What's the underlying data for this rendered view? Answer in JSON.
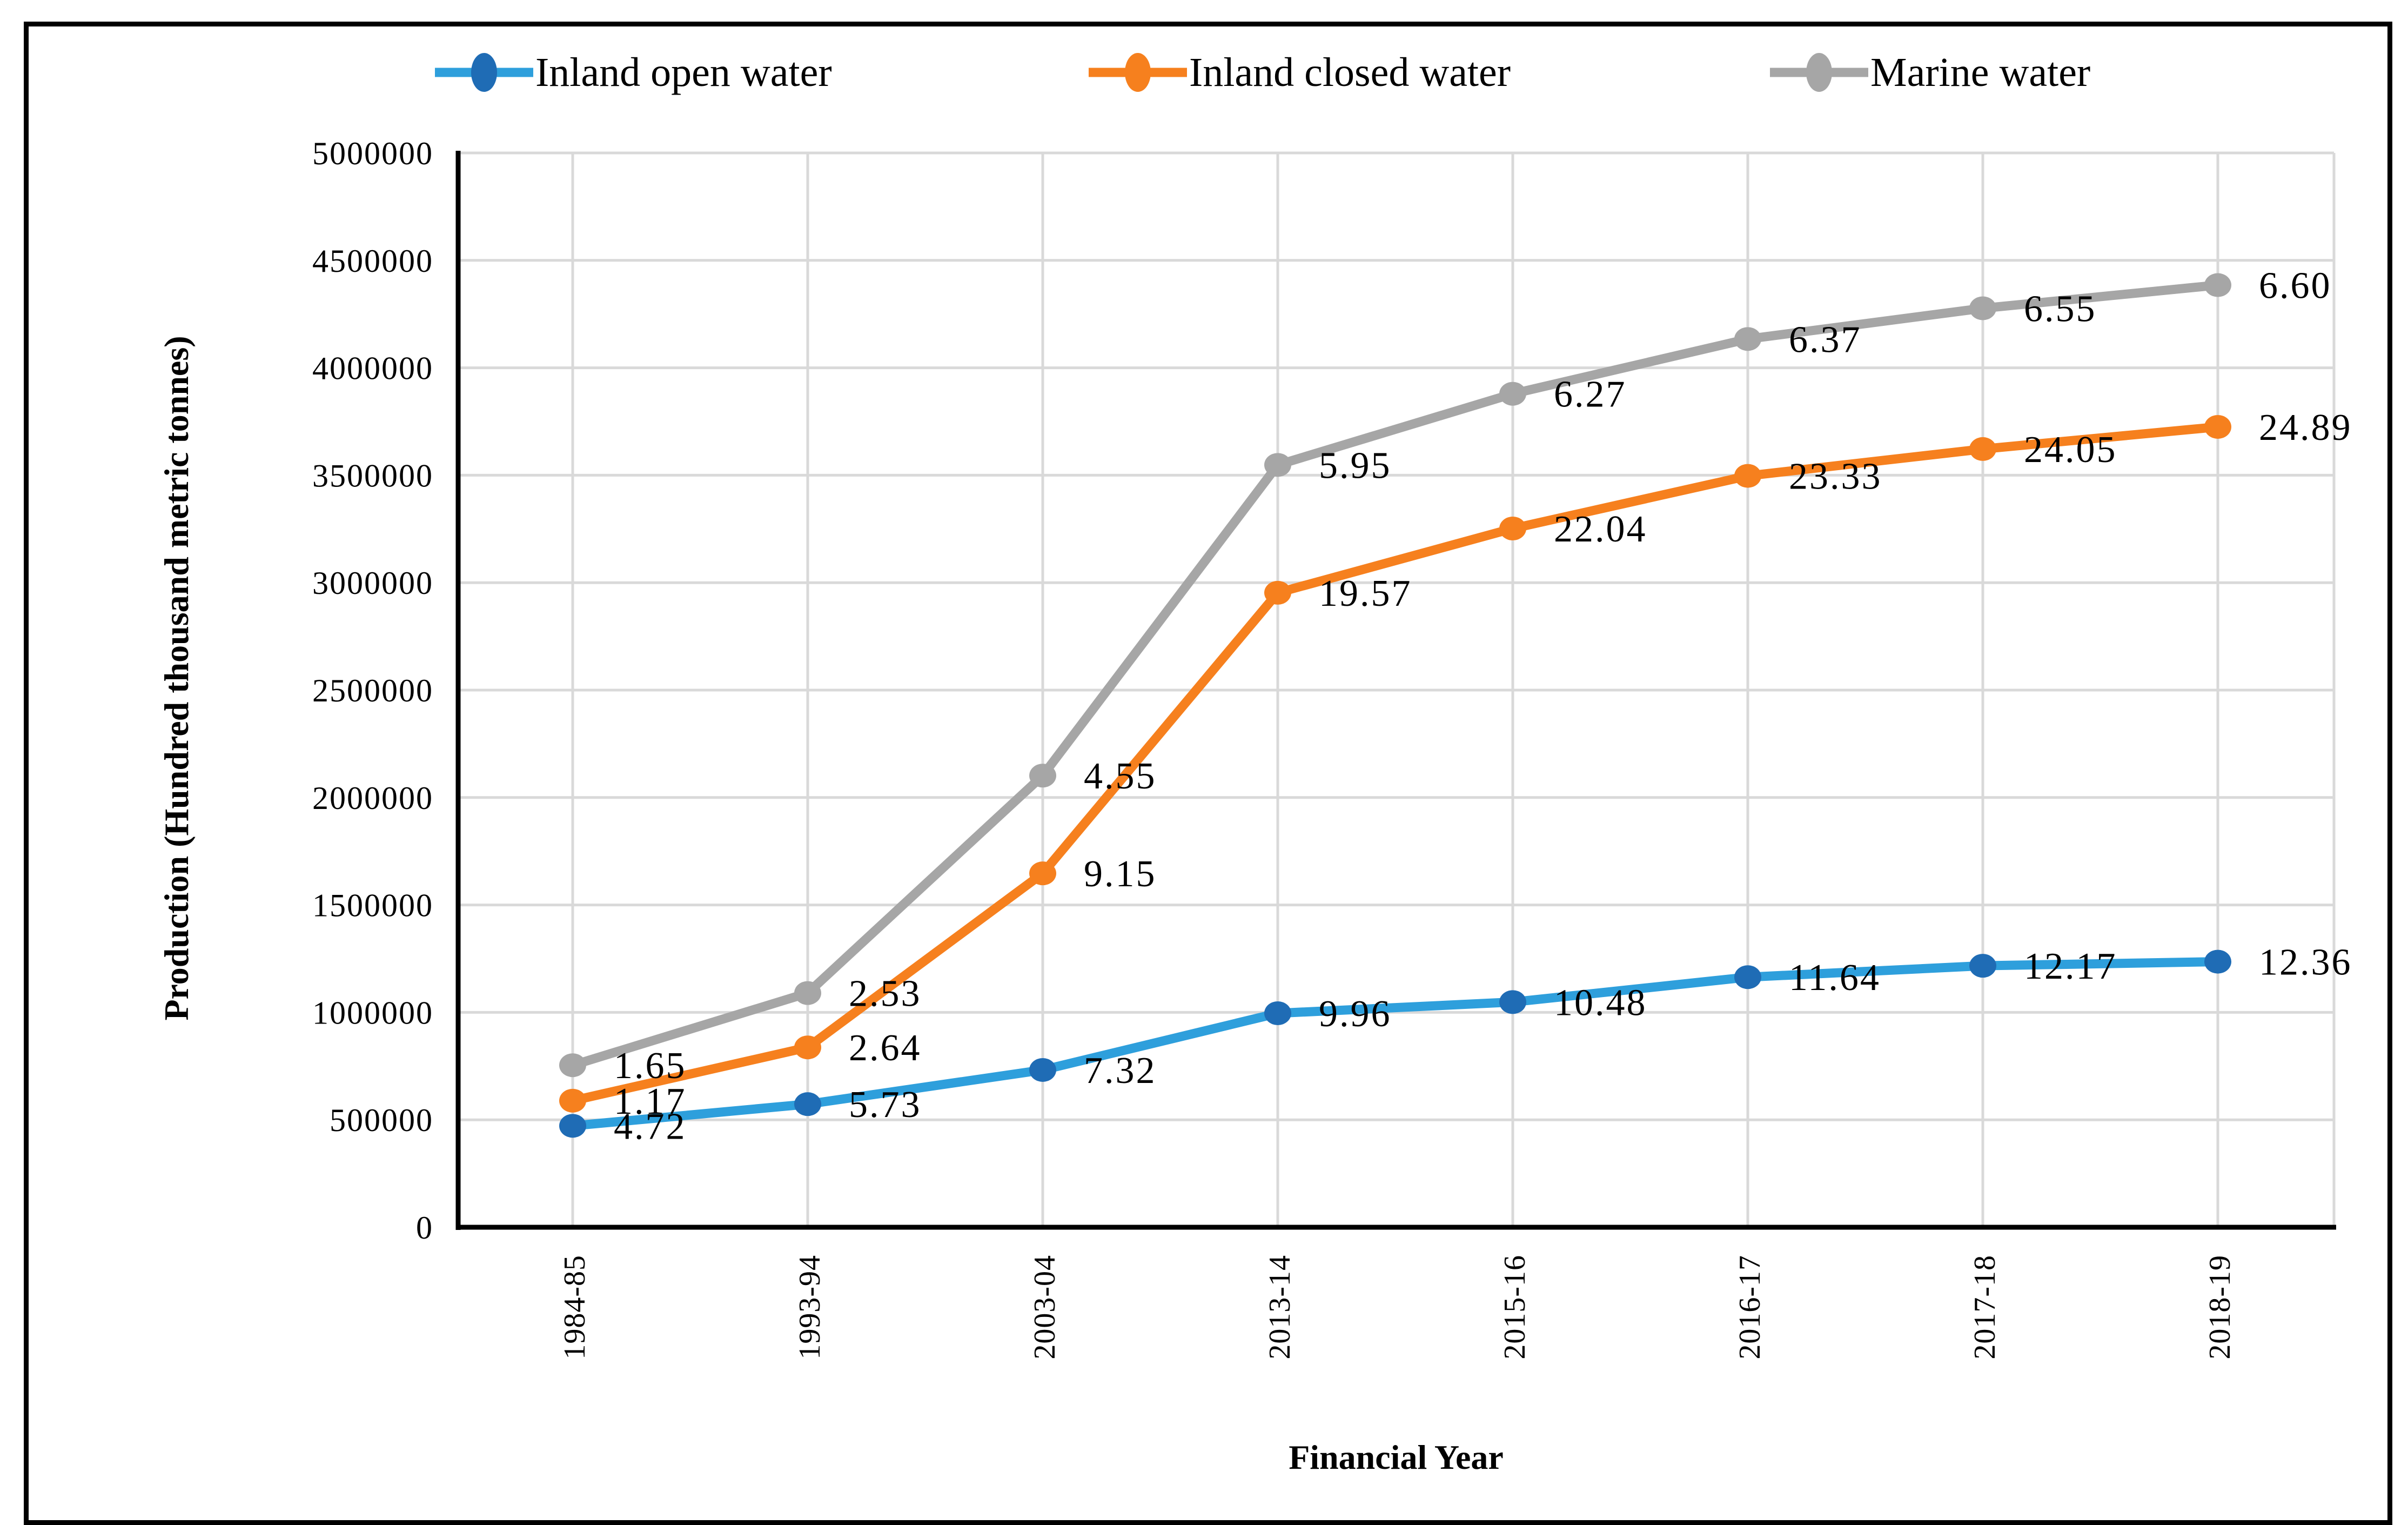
{
  "figure": {
    "kind": "stacked line chart with data labels",
    "background": "#FFFFFF",
    "border_color": "#000000"
  },
  "colors": {
    "gridline": "#D9D9D9",
    "axis_line": "#000000",
    "text": "#000000"
  },
  "chart_data": {
    "type": "line",
    "stacked": true,
    "value_multiplier": 100000,
    "title": "",
    "xlabel": "Financial Year",
    "ylabel": "Production (Hundred thousand metric tonnes)",
    "ylim": [
      0,
      5000000
    ],
    "ytick_step": 500000,
    "ytick_labels": [
      "0",
      "500000",
      "1000000",
      "1500000",
      "2000000",
      "2500000",
      "3000000",
      "3500000",
      "4000000",
      "4500000",
      "5000000"
    ],
    "grid": true,
    "legend_position": "top",
    "label_format": "0.00",
    "categories": [
      "1984-85",
      "1993-94",
      "2003-04",
      "2013-14",
      "2015-16",
      "2016-17",
      "2017-18",
      "2018-19"
    ],
    "series": [
      {
        "name": "Inland open water",
        "color": "#2E9FDC",
        "marker_color": "#1F6CB5",
        "values": [
          4.72,
          5.73,
          7.32,
          9.96,
          10.48,
          11.64,
          12.17,
          12.36
        ]
      },
      {
        "name": "Inland closed water",
        "color": "#F6801E",
        "marker_color": "#F6801E",
        "values": [
          1.17,
          2.64,
          9.15,
          19.57,
          22.04,
          23.33,
          24.05,
          24.89
        ]
      },
      {
        "name": "Marine water",
        "color": "#A6A6A6",
        "marker_color": "#A6A6A6",
        "values": [
          1.65,
          2.53,
          4.55,
          5.95,
          6.27,
          6.37,
          6.55,
          6.6
        ]
      }
    ]
  }
}
